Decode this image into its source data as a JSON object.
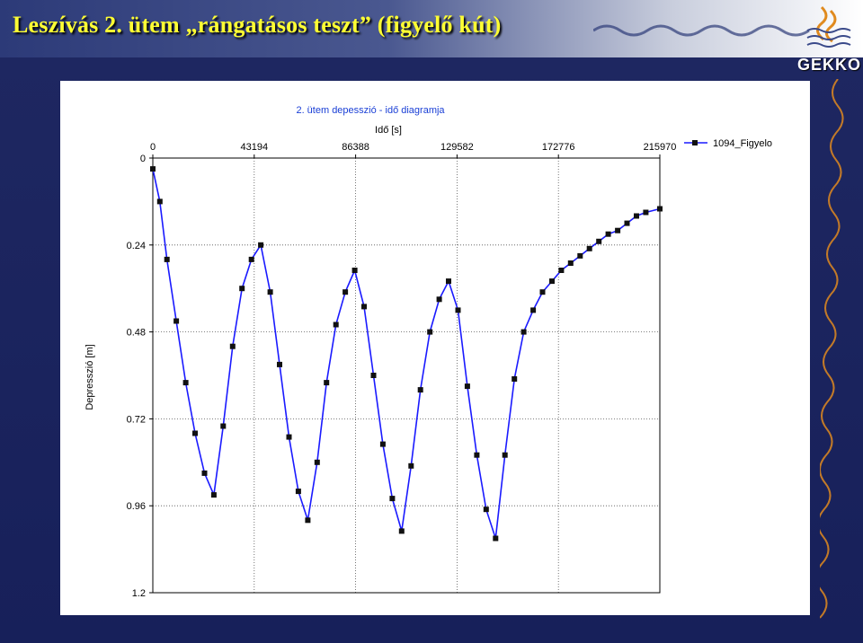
{
  "slide": {
    "title": "Leszívás 2. ütem „rángatásos teszt” (figyelő kút)",
    "title_color": "#ffff33",
    "logo_text": "GEKKO",
    "logo_icon": "flame-waves-icon",
    "accent_color": "#e08a1e"
  },
  "chart_data": {
    "type": "scatter",
    "title": "2. ütem depesszió - idő diagramja",
    "xlabel": "Idő [s]",
    "ylabel": "Depresszió [m]",
    "x_axis_position": "top",
    "y_inverted": true,
    "xlim": [
      0,
      215970
    ],
    "ylim": [
      0,
      1.2
    ],
    "x_ticks": [
      "0",
      "43194",
      "86388",
      "129582",
      "172776",
      "215970"
    ],
    "y_ticks": [
      "0",
      "0.24",
      "0.48",
      "0.72",
      "0.96",
      "1.2"
    ],
    "grid": true,
    "legend_position": "top-right",
    "series": [
      {
        "name": "1094_Figyelo",
        "color": "#1a1aff",
        "marker_color": "#111111",
        "x": [
          0,
          3000,
          6000,
          10000,
          14000,
          18000,
          22000,
          26000,
          30000,
          34000,
          38000,
          42000,
          46000,
          50000,
          54000,
          58000,
          62000,
          66000,
          70000,
          74000,
          78000,
          82000,
          86000,
          90000,
          94000,
          98000,
          102000,
          106000,
          110000,
          114000,
          118000,
          122000,
          126000,
          130000,
          134000,
          138000,
          142000,
          146000,
          150000,
          154000,
          158000,
          162000,
          166000,
          170000,
          174000,
          178000,
          182000,
          186000,
          190000,
          194000,
          198000,
          202000,
          206000,
          210000,
          215970
        ],
        "y": [
          0.03,
          0.12,
          0.28,
          0.45,
          0.62,
          0.76,
          0.87,
          0.93,
          0.74,
          0.52,
          0.36,
          0.28,
          0.24,
          0.37,
          0.57,
          0.77,
          0.92,
          1.0,
          0.84,
          0.62,
          0.46,
          0.37,
          0.31,
          0.41,
          0.6,
          0.79,
          0.94,
          1.03,
          0.85,
          0.64,
          0.48,
          0.39,
          0.34,
          0.42,
          0.63,
          0.82,
          0.97,
          1.05,
          0.82,
          0.61,
          0.48,
          0.42,
          0.37,
          0.34,
          0.31,
          0.29,
          0.27,
          0.25,
          0.23,
          0.21,
          0.2,
          0.18,
          0.16,
          0.15,
          0.14
        ]
      }
    ]
  }
}
